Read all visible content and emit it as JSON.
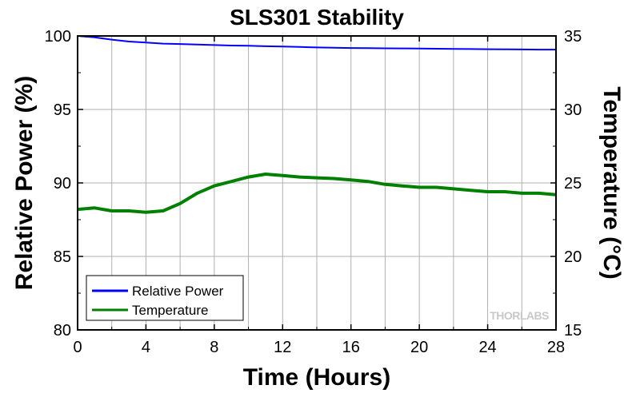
{
  "chart_data": {
    "type": "line",
    "title": "SLS301 Stability",
    "xlabel": "Time (Hours)",
    "ylabel": "Relative Power (%)",
    "y2label": "Temperature (°C)",
    "xlim": [
      0,
      28
    ],
    "ylim": [
      80,
      100
    ],
    "y2lim": [
      15,
      35
    ],
    "xticks": [
      0,
      4,
      8,
      12,
      16,
      20,
      24,
      28
    ],
    "yticks": [
      80,
      85,
      90,
      95,
      100
    ],
    "y2ticks": [
      15,
      20,
      25,
      30,
      35
    ],
    "grid": true,
    "legend_position": "bottom-left",
    "watermark": "THORLABS",
    "series": [
      {
        "name": "Relative Power",
        "axis": "left",
        "color": "#0000ff",
        "x": [
          0,
          1,
          2,
          3,
          4,
          5,
          6,
          7,
          8,
          9,
          10,
          11,
          12,
          13,
          14,
          15,
          16,
          17,
          18,
          19,
          20,
          21,
          22,
          23,
          24,
          25,
          26,
          27,
          28
        ],
        "y": [
          100.0,
          99.9,
          99.75,
          99.62,
          99.55,
          99.48,
          99.45,
          99.42,
          99.38,
          99.35,
          99.33,
          99.3,
          99.28,
          99.25,
          99.22,
          99.2,
          99.18,
          99.17,
          99.16,
          99.15,
          99.14,
          99.13,
          99.12,
          99.11,
          99.1,
          99.09,
          99.08,
          99.07,
          99.07
        ]
      },
      {
        "name": "Temperature",
        "axis": "right",
        "color": "#008000",
        "x": [
          0,
          1,
          2,
          3,
          4,
          5,
          6,
          7,
          8,
          9,
          10,
          11,
          12,
          13,
          14,
          15,
          16,
          17,
          18,
          19,
          20,
          21,
          22,
          23,
          24,
          25,
          26,
          27,
          28
        ],
        "y": [
          23.2,
          23.3,
          23.1,
          23.1,
          23.0,
          23.1,
          23.6,
          24.3,
          24.8,
          25.1,
          25.4,
          25.6,
          25.5,
          25.4,
          25.35,
          25.3,
          25.2,
          25.1,
          24.9,
          24.8,
          24.7,
          24.7,
          24.6,
          24.5,
          24.4,
          24.4,
          24.3,
          24.3,
          24.2
        ]
      }
    ]
  }
}
